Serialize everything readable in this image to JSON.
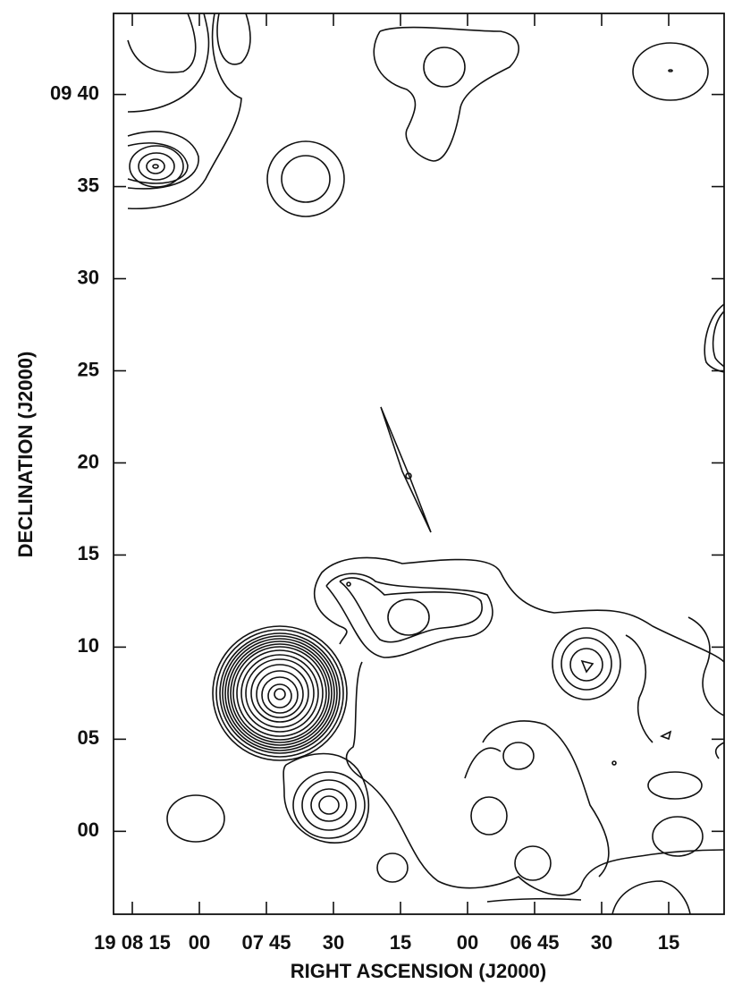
{
  "chart_data": {
    "type": "contour",
    "xlabel": "RIGHT ASCENSION (J2000)",
    "ylabel": "DECLINATION (J2000)",
    "xlim": [
      68899.2,
      68762.6
    ],
    "xticks": [
      {
        "value": 68895,
        "label": "19 08 15"
      },
      {
        "value": 68880,
        "label": "00"
      },
      {
        "value": 68865,
        "label": "07 45"
      },
      {
        "value": 68850,
        "label": "30"
      },
      {
        "value": 68835,
        "label": "15"
      },
      {
        "value": 68820,
        "label": "00"
      },
      {
        "value": 68805,
        "label": "06 45"
      },
      {
        "value": 68790,
        "label": "30"
      },
      {
        "value": 68775,
        "label": "15"
      }
    ],
    "ylim": [
      -4.5,
      44.4
    ],
    "yticks": [
      {
        "value": 40,
        "label": "09 40"
      },
      35,
      30,
      25,
      20,
      15,
      10,
      {
        "value": 5,
        "label": "05"
      },
      {
        "value": 0,
        "label": "00"
      }
    ]
  }
}
